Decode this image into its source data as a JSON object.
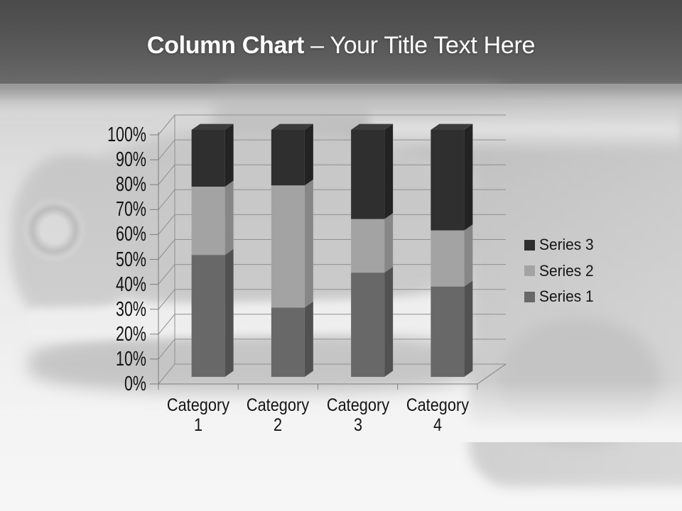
{
  "slide": {
    "title_bold": "Column Chart",
    "title_rest": "– Your Title Text Here"
  },
  "chart_data": {
    "type": "bar",
    "subtype": "3d-100-percent-stacked-column",
    "title": "",
    "xlabel": "",
    "ylabel": "",
    "categories": [
      "Category 1",
      "Category 2",
      "Category 3",
      "Category 4"
    ],
    "series": [
      {
        "name": "Series 1",
        "percentages": [
          49.4,
          28.1,
          42.2,
          36.6
        ],
        "colors": {
          "front": "#686868",
          "side": "#515151",
          "top": "#767676"
        }
      },
      {
        "name": "Series 2",
        "percentages": [
          27.6,
          49.4,
          21.7,
          22.7
        ],
        "colors": {
          "front": "#a3a3a3",
          "side": "#878787",
          "top": "#b0b0b0"
        }
      },
      {
        "name": "Series 3",
        "percentages": [
          23.0,
          22.5,
          36.1,
          40.7
        ],
        "colors": {
          "front": "#2f2f2f",
          "side": "#232323",
          "top": "#3c3c3c"
        }
      }
    ],
    "y_ticks": [
      "0%",
      "10%",
      "20%",
      "30%",
      "40%",
      "50%",
      "60%",
      "70%",
      "80%",
      "90%",
      "100%"
    ],
    "ylim": [
      0,
      100
    ],
    "grid": true,
    "legend_position": "right",
    "legend_order_top_to_bottom": [
      "Series 3",
      "Series 2",
      "Series 1"
    ],
    "colors": {
      "grid_line": "#8f8f8f",
      "axis_line": "#7d7d7d",
      "text": "#141414",
      "title_text": "#ffffff"
    }
  }
}
